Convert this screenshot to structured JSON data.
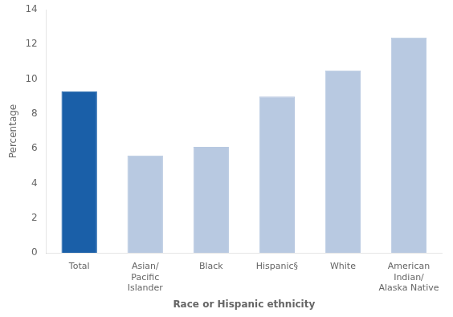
{
  "chart_data": {
    "type": "bar",
    "categories": [
      "Total",
      "Asian/\nPacific\nIslander",
      "Black",
      "Hispanic§",
      "White",
      "American\nIndian/\nAlaska Native"
    ],
    "values": [
      9.3,
      5.6,
      6.1,
      9.0,
      10.5,
      12.4
    ],
    "colors": [
      "#1a5fa8",
      "#b8c9e1",
      "#b8c9e1",
      "#b8c9e1",
      "#b8c9e1",
      "#b8c9e1"
    ],
    "xlabel": "Race or Hispanic ethnicity",
    "ylabel": "Percentage",
    "ylim": [
      0,
      14
    ],
    "yticks": [
      0,
      2,
      4,
      6,
      8,
      10,
      12,
      14
    ],
    "grid": false
  }
}
